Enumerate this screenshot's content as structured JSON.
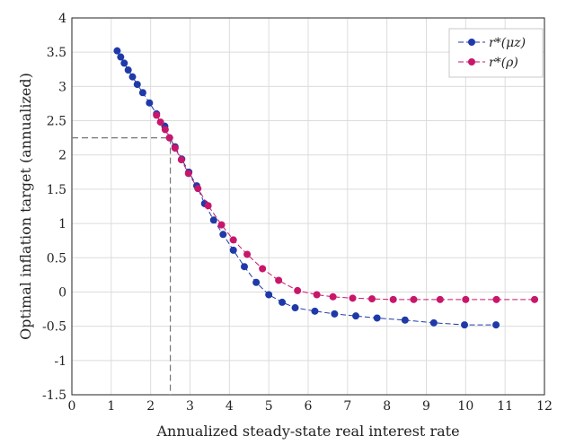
{
  "chart_data": {
    "type": "line",
    "xlabel": "Annualized steady-state real interest rate",
    "ylabel": "Optimal inflation target (annualized)",
    "xlim": [
      0,
      12
    ],
    "ylim": [
      -1.5,
      4
    ],
    "xticks": [
      0,
      1,
      2,
      3,
      4,
      5,
      6,
      7,
      8,
      9,
      10,
      11,
      12
    ],
    "yticks": [
      -1.5,
      -1,
      -0.5,
      0,
      0.5,
      1,
      1.5,
      2,
      2.5,
      3,
      3.5,
      4
    ],
    "ytick_labels": [
      "-1.5",
      "-1",
      "-0.5",
      "0",
      "0.5",
      "1",
      "1.5",
      "2",
      "2.5",
      "3",
      "3.5",
      "4"
    ],
    "grid": true,
    "legend_position": "top-right",
    "reference_point": {
      "x": 2.5,
      "y": 2.25
    },
    "series": [
      {
        "name": "r*(μz)",
        "color": "#1f3aa8",
        "x": [
          1.15,
          1.24,
          1.33,
          1.43,
          1.54,
          1.66,
          1.8,
          1.97,
          2.15,
          2.36,
          2.48,
          2.62,
          2.79,
          2.97,
          3.17,
          3.37,
          3.6,
          3.84,
          4.1,
          4.38,
          4.68,
          5.0,
          5.34,
          5.67,
          6.17,
          6.67,
          7.21,
          7.75,
          8.46,
          9.19,
          9.97,
          10.77
        ],
        "y": [
          3.52,
          3.43,
          3.34,
          3.24,
          3.14,
          3.03,
          2.91,
          2.76,
          2.6,
          2.42,
          2.25,
          2.12,
          1.94,
          1.75,
          1.55,
          1.29,
          1.05,
          0.84,
          0.61,
          0.37,
          0.14,
          -0.04,
          -0.15,
          -0.23,
          -0.28,
          -0.32,
          -0.35,
          -0.38,
          -0.41,
          -0.45,
          -0.48,
          -0.48
        ]
      },
      {
        "name": "r*(ρ)",
        "color": "#c8166b",
        "x": [
          2.15,
          2.25,
          2.37,
          2.48,
          2.62,
          2.78,
          2.96,
          3.2,
          3.46,
          3.8,
          4.1,
          4.45,
          4.84,
          5.25,
          5.73,
          6.22,
          6.63,
          7.13,
          7.62,
          8.16,
          8.68,
          9.35,
          10.0,
          10.78,
          11.75
        ],
        "y": [
          2.58,
          2.48,
          2.37,
          2.25,
          2.1,
          1.93,
          1.73,
          1.51,
          1.26,
          0.98,
          0.76,
          0.55,
          0.34,
          0.17,
          0.02,
          -0.04,
          -0.07,
          -0.09,
          -0.1,
          -0.11,
          -0.11,
          -0.11,
          -0.11,
          -0.11,
          -0.11
        ]
      }
    ]
  }
}
